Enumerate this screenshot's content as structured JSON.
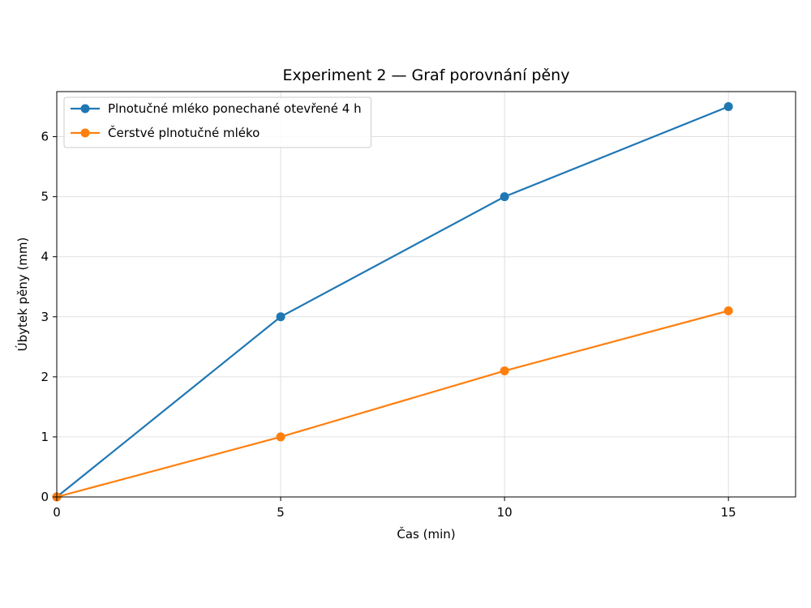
{
  "chart_data": {
    "type": "line",
    "title": "Experiment 2 — Graf porovnání pěny",
    "xlabel": "Čas (min)",
    "ylabel": "Úbytek pěny (mm)",
    "xlim": [
      0,
      16.5
    ],
    "ylim": [
      0,
      6.75
    ],
    "xticks": [
      0,
      5,
      10,
      15
    ],
    "yticks": [
      0,
      1,
      2,
      3,
      4,
      5,
      6
    ],
    "grid": true,
    "legend_position": "top-left",
    "series": [
      {
        "name": "Plnotučné mléko ponechané otevřené 4 h",
        "color": "#1f77b4",
        "x": [
          0,
          5,
          10,
          15
        ],
        "y": [
          0,
          3,
          5,
          6.5
        ]
      },
      {
        "name": "Čerstvé plnotučné mléko",
        "color": "#ff7f0e",
        "x": [
          0,
          5,
          10,
          15
        ],
        "y": [
          0,
          1,
          2.1,
          3.1
        ]
      }
    ]
  }
}
